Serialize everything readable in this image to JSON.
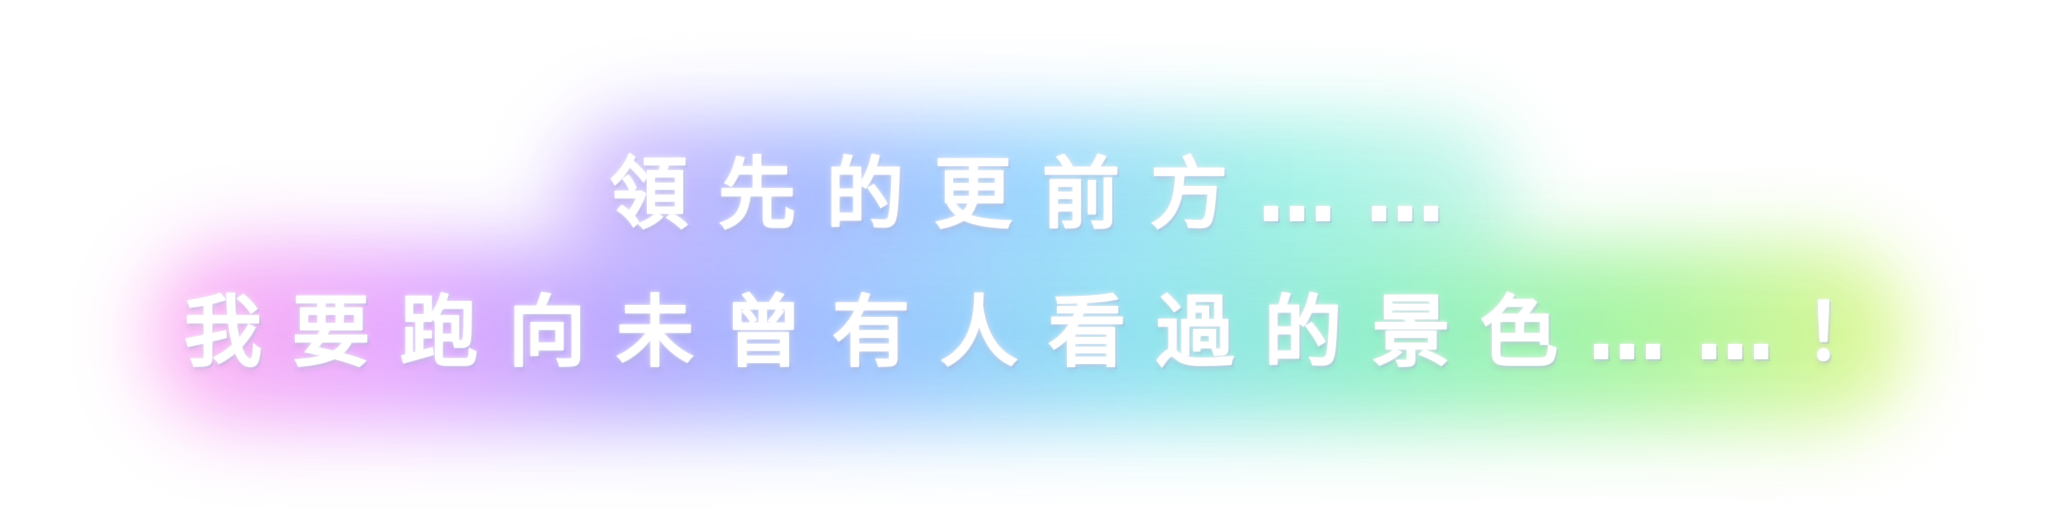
{
  "title_card": {
    "line1": "領先的更前方……",
    "line2": "我要跑向未曾有人看過的景色……！"
  }
}
